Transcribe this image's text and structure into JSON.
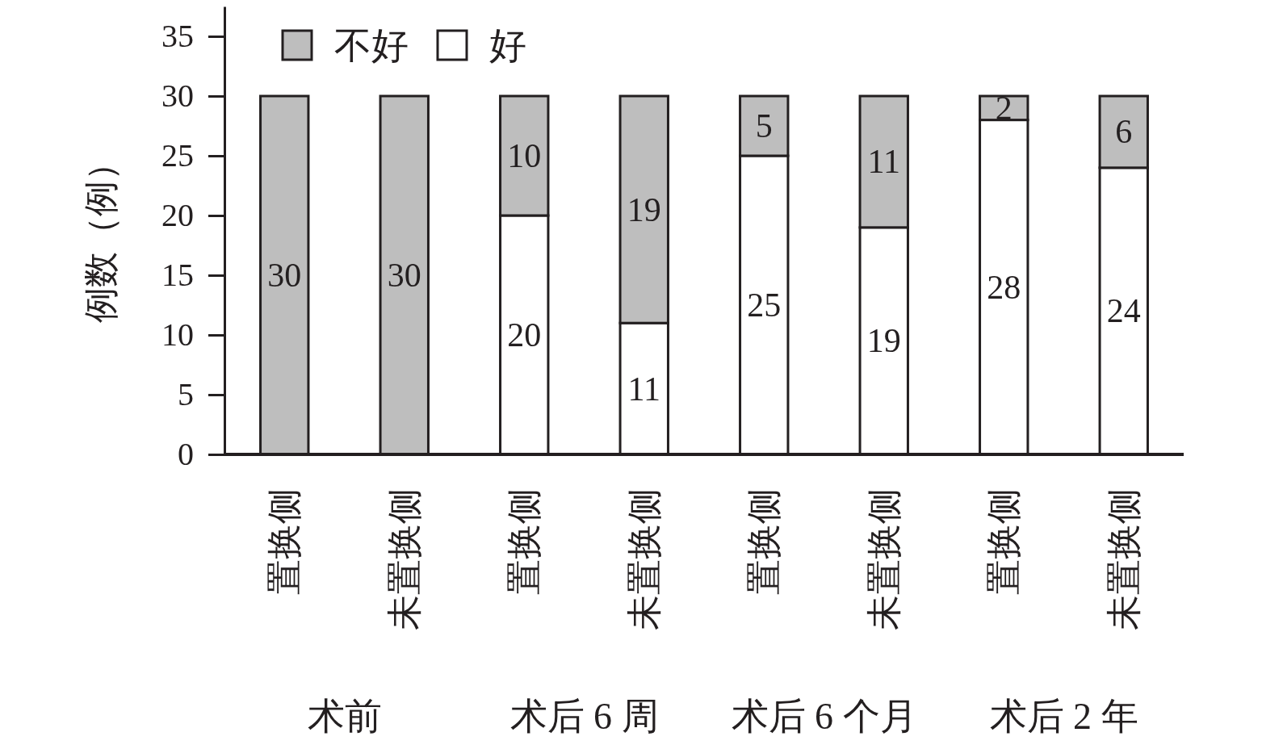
{
  "chart_data": {
    "type": "bar",
    "stacked": true,
    "ylabel": "例数（例）",
    "categories": [
      "置换侧",
      "未置换侧",
      "置换侧",
      "未置换侧",
      "置换侧",
      "未置换侧",
      "置换侧",
      "未置换侧"
    ],
    "series": [
      {
        "name": "好",
        "color": "#ffffff",
        "values": [
          0,
          0,
          20,
          11,
          25,
          19,
          28,
          24
        ],
        "value_labels": [
          null,
          null,
          "20",
          "11",
          "25",
          "19",
          "28",
          "24"
        ]
      },
      {
        "name": "不好",
        "color": "#bebebe",
        "values": [
          30,
          30,
          10,
          19,
          5,
          11,
          2,
          6
        ],
        "value_labels": [
          "30",
          "30",
          "10",
          "19",
          "5",
          "11",
          "2",
          "6"
        ]
      }
    ],
    "ylim": [
      0,
      37.5
    ],
    "yticks": [
      0,
      5,
      10,
      15,
      20,
      25,
      30,
      35
    ],
    "grid": false,
    "legend": "top left",
    "annotations": [
      "术前",
      "术后 6 周",
      "术后 6 个月",
      "术后 2 年"
    ]
  }
}
